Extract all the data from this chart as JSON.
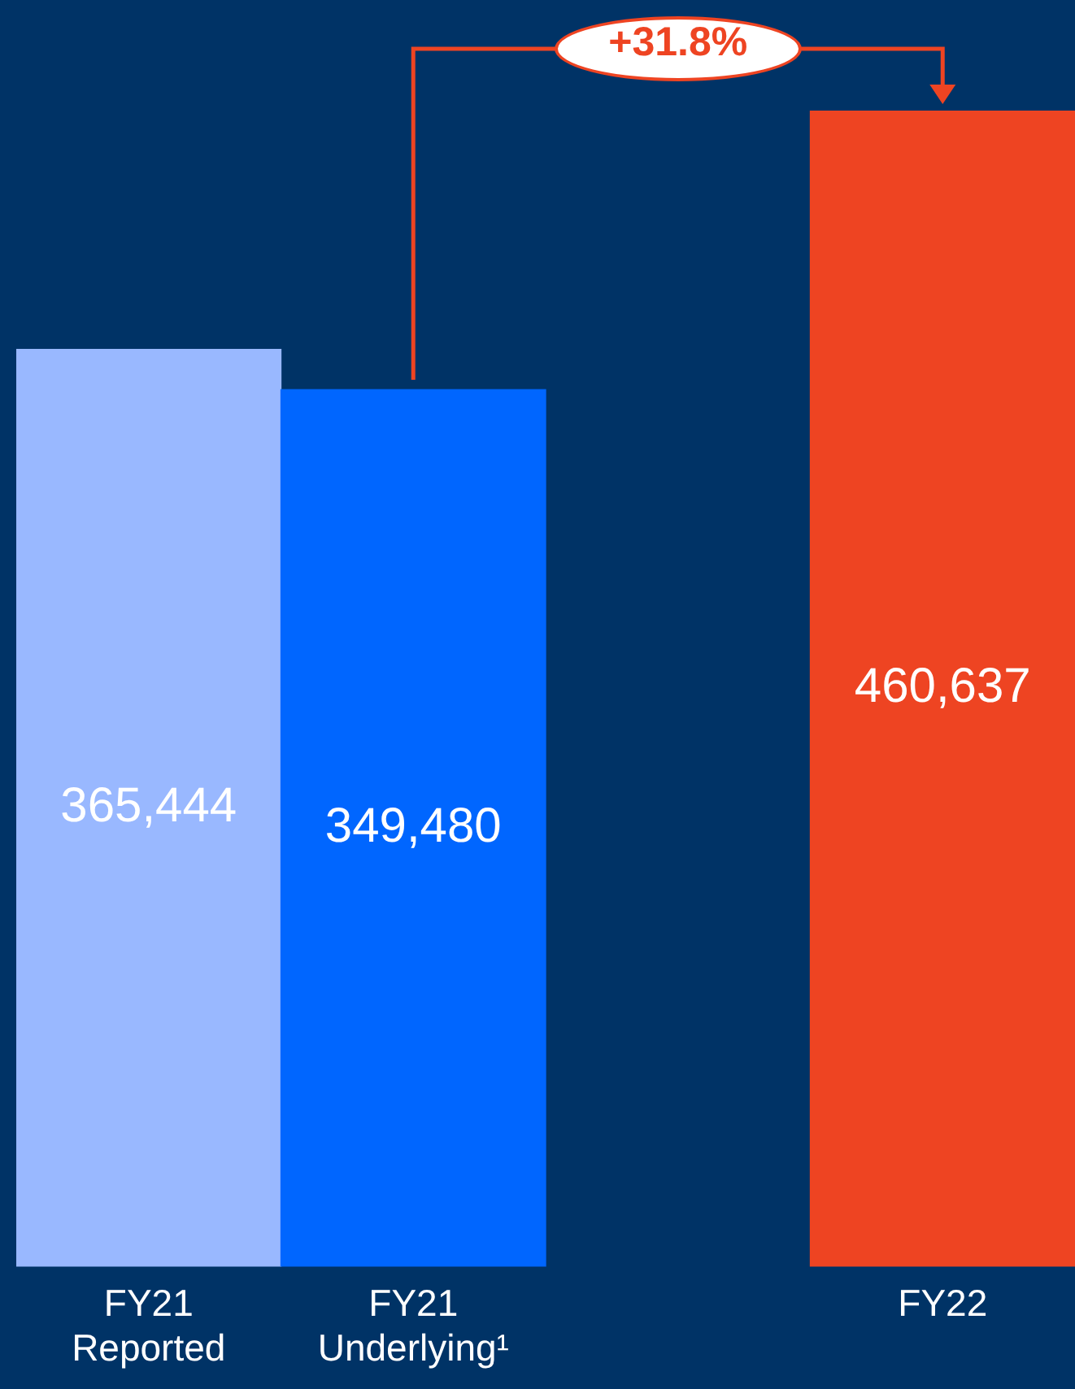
{
  "chart_data": {
    "type": "bar",
    "categories": [
      "FY21\nReported",
      "FY21\nUnderlying¹",
      null,
      "FY22"
    ],
    "values": [
      365444,
      349480,
      null,
      460637
    ],
    "colors": [
      "#99b8ff",
      "#0066ff",
      "#003366",
      "#ee4422"
    ],
    "data_labels": true,
    "value_labels": [
      "365,444",
      "349,480",
      null,
      "460,637"
    ],
    "annotations": [
      "+31.8%"
    ],
    "grid": false,
    "legend": false
  }
}
